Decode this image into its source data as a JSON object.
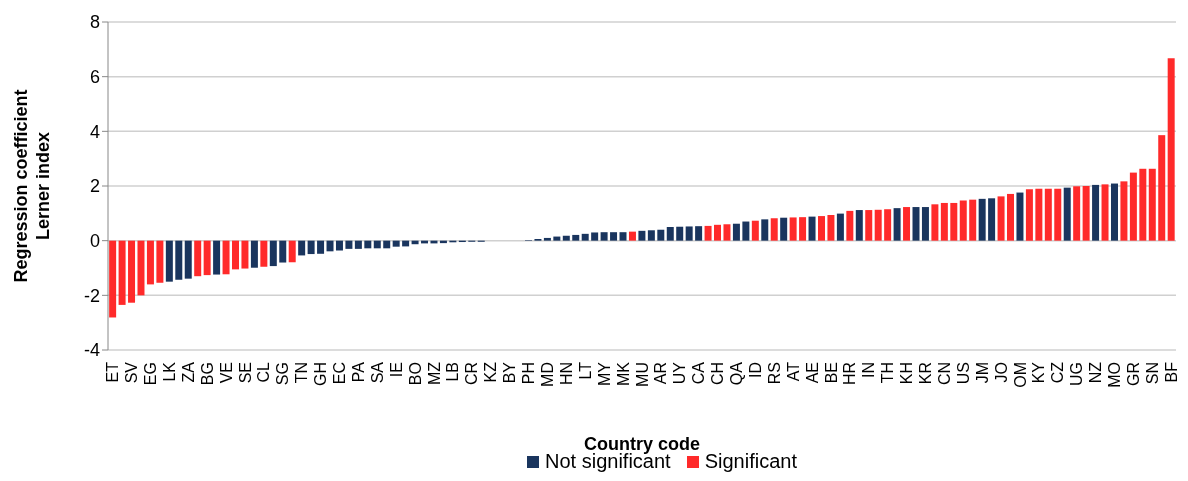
{
  "chart_data": {
    "type": "bar",
    "xlabel": "Country code",
    "ylabel": "Regression coefficient\nLerner index",
    "categories": [
      "ET",
      null,
      "SV",
      null,
      "EG",
      null,
      "LK",
      null,
      "ZA",
      null,
      "BG",
      null,
      "VE",
      null,
      "SE",
      null,
      "CL",
      null,
      "SG",
      null,
      "TN",
      null,
      "GH",
      null,
      "EC",
      null,
      "PA",
      null,
      "SA",
      null,
      "IE",
      null,
      "BO",
      null,
      "MZ",
      null,
      "LB",
      null,
      "CR",
      null,
      "KZ",
      null,
      "BY",
      null,
      "PH",
      null,
      "MD",
      null,
      "HN",
      null,
      "LT",
      null,
      "MY",
      null,
      "MK",
      null,
      "MU",
      null,
      "AR",
      null,
      "UY",
      null,
      "CA",
      null,
      "CH",
      null,
      "QA",
      null,
      "ID",
      null,
      "RS",
      null,
      "AT",
      null,
      "AE",
      null,
      "BE",
      null,
      "HR",
      null,
      "IN",
      null,
      "TH",
      null,
      "KH",
      null,
      "KR",
      null,
      "CN",
      null,
      "US",
      null,
      "JM",
      null,
      "JO",
      null,
      "OM",
      null,
      "KY",
      null,
      "CZ",
      null,
      "UG",
      null,
      "NZ",
      null,
      "MO",
      null,
      "GR",
      null,
      "SN",
      null,
      "BF"
    ],
    "series": [
      {
        "name": "Not significant",
        "color": "#1a355e",
        "values": [
          null,
          null,
          null,
          null,
          null,
          null,
          -1.5,
          -1.43,
          -1.39,
          null,
          null,
          -1.24,
          null,
          null,
          null,
          -0.99,
          null,
          -0.93,
          -0.8,
          null,
          -0.54,
          -0.49,
          -0.48,
          -0.39,
          -0.36,
          -0.3,
          -0.3,
          -0.28,
          -0.28,
          -0.28,
          -0.22,
          -0.21,
          -0.13,
          -0.1,
          -0.1,
          -0.09,
          -0.06,
          -0.05,
          -0.04,
          -0.04,
          null,
          null,
          null,
          0.0,
          0.02,
          0.06,
          0.1,
          0.15,
          0.18,
          0.21,
          0.25,
          0.3,
          0.31,
          0.31,
          0.31,
          null,
          0.36,
          0.38,
          0.4,
          0.5,
          0.51,
          0.52,
          0.53,
          null,
          null,
          null,
          0.62,
          0.7,
          null,
          0.78,
          null,
          0.84,
          null,
          null,
          0.88,
          null,
          null,
          0.99,
          null,
          1.12,
          null,
          null,
          null,
          1.19,
          null,
          1.23,
          1.23,
          null,
          null,
          null,
          null,
          null,
          1.53,
          1.55,
          null,
          null,
          1.76,
          null,
          null,
          null,
          null,
          1.94,
          null,
          null,
          2.04,
          null,
          2.09,
          null,
          null,
          null,
          null,
          null,
          null
        ]
      },
      {
        "name": "Significant",
        "color": "#ff2a2a",
        "values": [
          -2.81,
          -2.35,
          -2.27,
          -2.0,
          -1.6,
          -1.54,
          null,
          null,
          null,
          -1.3,
          -1.26,
          null,
          -1.23,
          -1.05,
          -1.02,
          null,
          -0.95,
          null,
          null,
          -0.79,
          null,
          null,
          null,
          null,
          null,
          null,
          null,
          null,
          null,
          null,
          null,
          null,
          null,
          null,
          null,
          null,
          null,
          null,
          null,
          null,
          null,
          null,
          null,
          null,
          null,
          null,
          null,
          null,
          null,
          null,
          null,
          null,
          null,
          null,
          null,
          0.33,
          null,
          null,
          null,
          null,
          null,
          null,
          null,
          0.54,
          0.58,
          0.6,
          null,
          null,
          0.73,
          null,
          0.82,
          null,
          0.85,
          0.86,
          null,
          0.9,
          0.94,
          null,
          1.09,
          null,
          1.12,
          1.13,
          1.15,
          null,
          1.23,
          null,
          null,
          1.33,
          1.38,
          1.38,
          1.47,
          1.5,
          null,
          null,
          1.62,
          1.71,
          null,
          1.88,
          1.9,
          1.9,
          1.9,
          null,
          1.99,
          2.0,
          null,
          2.06,
          null,
          2.17,
          2.49,
          2.63,
          2.63,
          3.86,
          6.67
        ]
      }
    ],
    "stacked": true,
    "ylim": [
      -4,
      8
    ],
    "yticks": [
      -4,
      -2,
      0,
      2,
      4,
      6,
      8
    ],
    "grid": "y",
    "legend": "bottom"
  }
}
